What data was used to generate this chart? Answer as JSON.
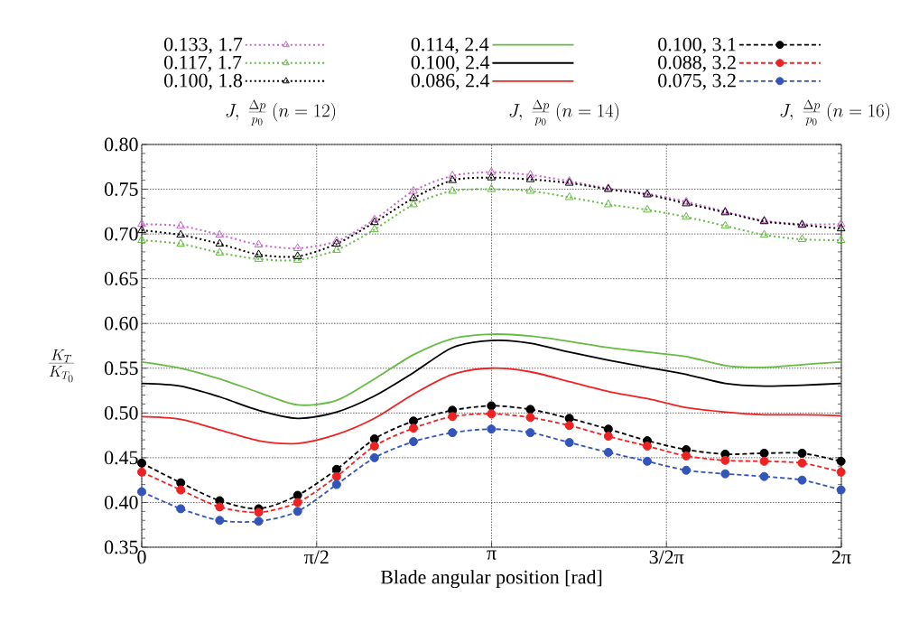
{
  "chart_data": {
    "type": "line",
    "xlabel": "Blade angular position [rad]",
    "ylabel": "\\frac{K_T}{K_{T_0}}",
    "annotations": [
      "J,\\ \\frac{\\Delta p}{p_0}\\ (n=12)",
      "J,\\ \\frac{\\Delta p}{p_0}\\ (n=14)",
      "J,\\ \\frac{\\Delta p}{p_0}\\ (n=16)"
    ],
    "x": [
      0,
      0.35,
      0.7,
      1.05,
      1.4,
      1.75,
      2.09,
      2.44,
      2.79,
      3.14,
      3.49,
      3.84,
      4.19,
      4.54,
      4.89,
      5.24,
      5.59,
      5.93,
      6.28
    ],
    "xlim": [
      0,
      6.283
    ],
    "ylim": [
      0.35,
      0.8
    ],
    "xticks": [
      0,
      {
        "value": 1.571,
        "label": "π/2"
      },
      {
        "value": 3.142,
        "label": "π"
      },
      {
        "value": 4.712,
        "label": "3/2π"
      },
      {
        "value": 6.283,
        "label": "2π"
      }
    ],
    "yticks": [
      0.35,
      {
        "value": 0.4,
        "label": "0.40"
      },
      0.45,
      {
        "value": 0.5,
        "label": "0.50"
      },
      0.55,
      {
        "value": 0.6,
        "label": "0.60"
      },
      0.65,
      {
        "value": 0.7,
        "label": "0.70"
      },
      0.75,
      {
        "value": 0.8,
        "label": "0.80"
      }
    ],
    "grid": true,
    "legend": "top",
    "series": [
      {
        "name": "0.133, 1.7",
        "color": "#cc66cc",
        "marker": "triangle",
        "line_style": "dotted",
        "values": [
          0.711,
          0.709,
          0.699,
          0.688,
          0.684,
          0.692,
          0.716,
          0.748,
          0.765,
          0.769,
          0.766,
          0.759,
          0.751,
          0.745,
          0.736,
          0.725,
          0.715,
          0.711,
          0.711
        ]
      },
      {
        "name": "0.114, 2.4",
        "color": "#66bb44",
        "marker": "none",
        "line_style": "solid",
        "values": [
          0.557,
          0.55,
          0.538,
          0.523,
          0.509,
          0.514,
          0.538,
          0.565,
          0.583,
          0.588,
          0.586,
          0.58,
          0.573,
          0.568,
          0.563,
          0.553,
          0.551,
          0.554,
          0.557
        ]
      },
      {
        "name": "0.100, 3.1",
        "color": "#000000",
        "marker": "circle",
        "line_style": "dashed",
        "values": [
          0.444,
          0.422,
          0.402,
          0.393,
          0.408,
          0.437,
          0.471,
          0.491,
          0.503,
          0.508,
          0.504,
          0.494,
          0.482,
          0.469,
          0.459,
          0.454,
          0.455,
          0.455,
          0.446
        ]
      },
      {
        "name": "0.117, 1.7",
        "color": "#66bb44",
        "marker": "triangle",
        "line_style": "dotted",
        "values": [
          0.693,
          0.689,
          0.679,
          0.672,
          0.671,
          0.682,
          0.705,
          0.733,
          0.748,
          0.75,
          0.748,
          0.741,
          0.733,
          0.727,
          0.719,
          0.709,
          0.699,
          0.694,
          0.693
        ]
      },
      {
        "name": "0.100, 2.4",
        "color": "#000000",
        "marker": "none",
        "line_style": "solid",
        "values": [
          0.533,
          0.53,
          0.518,
          0.503,
          0.494,
          0.501,
          0.519,
          0.545,
          0.573,
          0.581,
          0.578,
          0.568,
          0.559,
          0.551,
          0.543,
          0.533,
          0.53,
          0.531,
          0.533
        ]
      },
      {
        "name": "0.088, 3.2",
        "color": "#ee2222",
        "marker": "circle",
        "line_style": "dashed",
        "values": [
          0.434,
          0.414,
          0.395,
          0.389,
          0.4,
          0.429,
          0.463,
          0.483,
          0.496,
          0.499,
          0.495,
          0.486,
          0.474,
          0.463,
          0.452,
          0.447,
          0.446,
          0.444,
          0.434
        ]
      },
      {
        "name": "0.100, 1.8",
        "color": "#000000",
        "marker": "triangle",
        "line_style": "dotted",
        "values": [
          0.704,
          0.699,
          0.689,
          0.677,
          0.675,
          0.689,
          0.713,
          0.74,
          0.76,
          0.763,
          0.761,
          0.757,
          0.75,
          0.744,
          0.734,
          0.724,
          0.714,
          0.71,
          0.706
        ]
      },
      {
        "name": "0.086, 2.4",
        "color": "#ee2222",
        "marker": "none",
        "line_style": "solid",
        "values": [
          0.496,
          0.493,
          0.481,
          0.469,
          0.466,
          0.476,
          0.494,
          0.521,
          0.543,
          0.55,
          0.546,
          0.535,
          0.524,
          0.516,
          0.506,
          0.501,
          0.498,
          0.498,
          0.497
        ]
      },
      {
        "name": "0.075, 3.2",
        "color": "#3355bb",
        "marker": "circle",
        "line_style": "dashed",
        "values": [
          0.412,
          0.393,
          0.38,
          0.379,
          0.39,
          0.42,
          0.45,
          0.468,
          0.478,
          0.482,
          0.478,
          0.467,
          0.456,
          0.446,
          0.436,
          0.432,
          0.429,
          0.425,
          0.414
        ]
      }
    ]
  }
}
